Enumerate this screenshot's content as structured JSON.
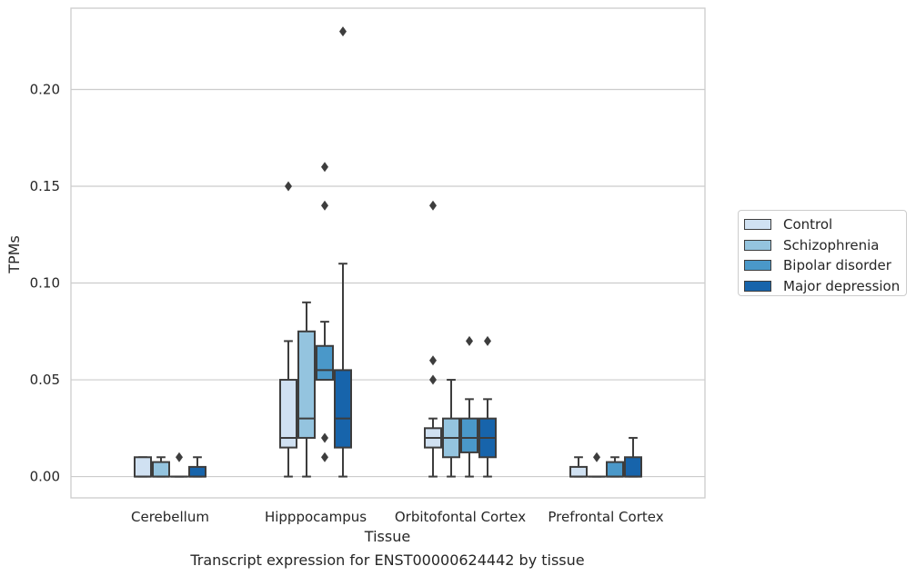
{
  "chart_data": {
    "type": "box",
    "title": "Transcript expression for ENST00000624442 by tissue",
    "xlabel": "Tissue",
    "ylabel": "TPMs",
    "ylim": [
      -0.011,
      0.242
    ],
    "yticks": [
      "0.00",
      "0.05",
      "0.10",
      "0.15",
      "0.20"
    ],
    "ytick_values": [
      0,
      0.05,
      0.1,
      0.15,
      0.2
    ],
    "grid": true,
    "legend_position": "right-center",
    "categories": [
      "Cerebellum",
      "Hipppocampus",
      "Orbitofontal Cortex",
      "Prefrontal Cortex"
    ],
    "series": [
      {
        "name": "Control",
        "color": "#d0e1f2",
        "boxes": [
          {
            "whislo": 0,
            "q1": 0,
            "med": 0,
            "q3": 0.01,
            "whishi": 0.01,
            "fliers": []
          },
          {
            "whislo": 0,
            "q1": 0.015,
            "med": 0.02,
            "q3": 0.05,
            "whishi": 0.07,
            "fliers": [
              0.15
            ]
          },
          {
            "whislo": 0,
            "q1": 0.015,
            "med": 0.02,
            "q3": 0.025,
            "whishi": 0.03,
            "fliers": [
              0.05,
              0.06,
              0.14
            ]
          },
          {
            "whislo": 0,
            "q1": 0,
            "med": 0,
            "q3": 0.005,
            "whishi": 0.01,
            "fliers": []
          }
        ]
      },
      {
        "name": "Schizophrenia",
        "color": "#94c4df",
        "boxes": [
          {
            "whislo": 0,
            "q1": 0,
            "med": 0,
            "q3": 0.0075,
            "whishi": 0.01,
            "fliers": []
          },
          {
            "whislo": 0,
            "q1": 0.02,
            "med": 0.03,
            "q3": 0.075,
            "whishi": 0.09,
            "fliers": []
          },
          {
            "whislo": 0,
            "q1": 0.01,
            "med": 0.02,
            "q3": 0.03,
            "whishi": 0.05,
            "fliers": []
          },
          {
            "whislo": 0,
            "q1": 0,
            "med": 0,
            "q3": 0,
            "whishi": 0,
            "fliers": [
              0.01
            ]
          }
        ]
      },
      {
        "name": "Bipolar disorder",
        "color": "#4a98c9",
        "boxes": [
          {
            "whislo": 0,
            "q1": 0,
            "med": 0,
            "q3": 0,
            "whishi": 0,
            "fliers": [
              0.01
            ]
          },
          {
            "whislo": 0.05,
            "q1": 0.05,
            "med": 0.055,
            "q3": 0.0675,
            "whishi": 0.08,
            "fliers": [
              0.01,
              0.02,
              0.14,
              0.16
            ]
          },
          {
            "whislo": 0,
            "q1": 0.0125,
            "med": 0.02,
            "q3": 0.03,
            "whishi": 0.04,
            "fliers": [
              0.07
            ]
          },
          {
            "whislo": 0,
            "q1": 0,
            "med": 0,
            "q3": 0.0075,
            "whishi": 0.01,
            "fliers": []
          }
        ]
      },
      {
        "name": "Major depression",
        "color": "#1764ab",
        "boxes": [
          {
            "whislo": 0,
            "q1": 0,
            "med": 0,
            "q3": 0.005,
            "whishi": 0.01,
            "fliers": []
          },
          {
            "whislo": 0,
            "q1": 0.015,
            "med": 0.03,
            "q3": 0.055,
            "whishi": 0.11,
            "fliers": [
              0.23
            ]
          },
          {
            "whislo": 0,
            "q1": 0.01,
            "med": 0.02,
            "q3": 0.03,
            "whishi": 0.04,
            "fliers": [
              0.07
            ]
          },
          {
            "whislo": 0,
            "q1": 0,
            "med": 0,
            "q3": 0.01,
            "whishi": 0.02,
            "fliers": []
          }
        ]
      }
    ]
  }
}
